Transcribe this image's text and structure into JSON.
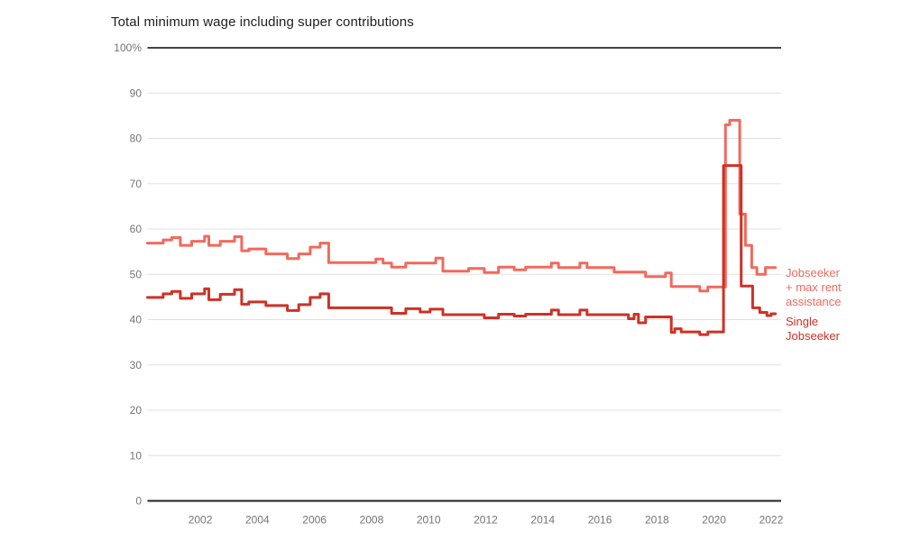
{
  "title": "Total minimum wage including super contributions",
  "colors": {
    "series_light": "#F2695C",
    "series_dark": "#CE3126",
    "gridline": "#E0E0E0",
    "axis_edge_top": "#444444",
    "axis_edge_bottom": "#222222",
    "tick_label": "#757575",
    "title_text": "#212121"
  },
  "legend": {
    "items": [
      {
        "label": "Jobseeker + max rent assistance",
        "lines": [
          "Jobseeker",
          "+ max rent",
          "assistance"
        ],
        "color": "#F2695C"
      },
      {
        "label": "Single Jobseeker",
        "lines": [
          "Single",
          "Jobseeker"
        ],
        "color": "#CE3126"
      }
    ]
  },
  "chart_data": {
    "type": "line",
    "title": "Total minimum wage including super contributions",
    "xlabel": "",
    "ylabel": "%",
    "step": true,
    "grid": true,
    "legend_position": "right",
    "xlim": [
      2000.15,
      2022.35
    ],
    "ylim": [
      0,
      100
    ],
    "y_ticks": [
      {
        "v": 100,
        "label": "100%"
      },
      {
        "v": 90,
        "label": "90"
      },
      {
        "v": 80,
        "label": "80"
      },
      {
        "v": 70,
        "label": "70"
      },
      {
        "v": 60,
        "label": "60"
      },
      {
        "v": 50,
        "label": "50"
      },
      {
        "v": 40,
        "label": "40"
      },
      {
        "v": 30,
        "label": "30"
      },
      {
        "v": 20,
        "label": "20"
      },
      {
        "v": 10,
        "label": "10"
      },
      {
        "v": 0,
        "label": "0"
      }
    ],
    "x_ticks": [
      {
        "v": 2002,
        "label": "2002"
      },
      {
        "v": 2004,
        "label": "2004"
      },
      {
        "v": 2006,
        "label": "2006"
      },
      {
        "v": 2008,
        "label": "2008"
      },
      {
        "v": 2010,
        "label": "2010"
      },
      {
        "v": 2012,
        "label": "2012"
      },
      {
        "v": 2014,
        "label": "2014"
      },
      {
        "v": 2016,
        "label": "2016"
      },
      {
        "v": 2018,
        "label": "2018"
      },
      {
        "v": 2020,
        "label": "2020"
      },
      {
        "v": 2022,
        "label": "2022"
      }
    ],
    "series": [
      {
        "name": "Jobseeker + max rent assistance",
        "color": "#F2695C",
        "points": [
          [
            2000.15,
            56.9
          ],
          [
            2000.7,
            57.6
          ],
          [
            2001.0,
            58.1
          ],
          [
            2001.3,
            56.4
          ],
          [
            2001.7,
            57.3
          ],
          [
            2002.15,
            58.4
          ],
          [
            2002.3,
            56.4
          ],
          [
            2002.7,
            57.3
          ],
          [
            2003.2,
            58.3
          ],
          [
            2003.45,
            55.2
          ],
          [
            2003.7,
            55.6
          ],
          [
            2004.3,
            54.5
          ],
          [
            2005.05,
            53.5
          ],
          [
            2005.45,
            54.5
          ],
          [
            2005.85,
            56.0
          ],
          [
            2006.2,
            56.9
          ],
          [
            2006.5,
            52.6
          ],
          [
            2008.15,
            53.4
          ],
          [
            2008.4,
            52.5
          ],
          [
            2008.7,
            51.6
          ],
          [
            2009.2,
            52.5
          ],
          [
            2010.25,
            53.6
          ],
          [
            2010.5,
            50.7
          ],
          [
            2011.4,
            51.3
          ],
          [
            2011.95,
            50.4
          ],
          [
            2012.45,
            51.6
          ],
          [
            2013.0,
            51.0
          ],
          [
            2013.4,
            51.6
          ],
          [
            2014.3,
            52.5
          ],
          [
            2014.55,
            51.5
          ],
          [
            2015.3,
            52.5
          ],
          [
            2015.55,
            51.5
          ],
          [
            2016.5,
            50.5
          ],
          [
            2017.6,
            49.5
          ],
          [
            2018.3,
            50.3
          ],
          [
            2018.5,
            47.3
          ],
          [
            2019.5,
            46.3
          ],
          [
            2019.78,
            47.2
          ],
          [
            2020.4,
            83.0
          ],
          [
            2020.55,
            84.0
          ],
          [
            2020.9,
            63.3
          ],
          [
            2021.1,
            56.4
          ],
          [
            2021.32,
            51.5
          ],
          [
            2021.5,
            50.0
          ],
          [
            2021.8,
            51.5
          ],
          [
            2022.15,
            51.5
          ]
        ]
      },
      {
        "name": "Single Jobseeker",
        "color": "#CE3126",
        "points": [
          [
            2000.15,
            44.9
          ],
          [
            2000.7,
            45.7
          ],
          [
            2001.0,
            46.2
          ],
          [
            2001.3,
            44.7
          ],
          [
            2001.7,
            45.7
          ],
          [
            2002.15,
            46.8
          ],
          [
            2002.3,
            44.4
          ],
          [
            2002.7,
            45.6
          ],
          [
            2003.2,
            46.6
          ],
          [
            2003.45,
            43.4
          ],
          [
            2003.7,
            43.9
          ],
          [
            2004.3,
            43.1
          ],
          [
            2005.05,
            42.0
          ],
          [
            2005.45,
            43.3
          ],
          [
            2005.85,
            44.9
          ],
          [
            2006.2,
            45.7
          ],
          [
            2006.5,
            42.6
          ],
          [
            2008.7,
            41.4
          ],
          [
            2009.2,
            42.4
          ],
          [
            2009.7,
            41.7
          ],
          [
            2010.05,
            42.3
          ],
          [
            2010.5,
            41.1
          ],
          [
            2011.95,
            40.4
          ],
          [
            2012.45,
            41.2
          ],
          [
            2013.0,
            40.8
          ],
          [
            2013.4,
            41.2
          ],
          [
            2014.3,
            42.1
          ],
          [
            2014.55,
            41.1
          ],
          [
            2015.3,
            42.1
          ],
          [
            2015.55,
            41.1
          ],
          [
            2017.0,
            40.2
          ],
          [
            2017.2,
            41.2
          ],
          [
            2017.35,
            39.3
          ],
          [
            2017.6,
            40.6
          ],
          [
            2018.5,
            37.2
          ],
          [
            2018.62,
            38.0
          ],
          [
            2018.85,
            37.3
          ],
          [
            2019.5,
            36.7
          ],
          [
            2019.78,
            37.3
          ],
          [
            2020.33,
            74.0
          ],
          [
            2020.95,
            47.4
          ],
          [
            2021.35,
            42.6
          ],
          [
            2021.6,
            41.6
          ],
          [
            2021.85,
            40.9
          ],
          [
            2022.0,
            41.3
          ],
          [
            2022.15,
            41.3
          ]
        ]
      }
    ]
  }
}
